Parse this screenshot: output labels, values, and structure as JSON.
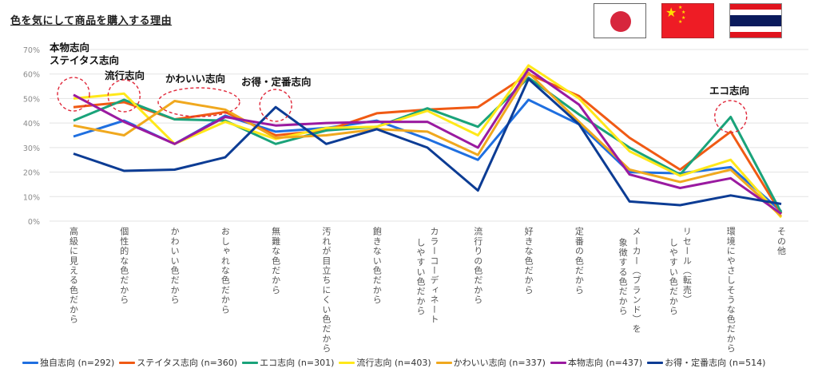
{
  "title": "色を気にして商品を購入する理由",
  "flags": [
    {
      "country": "Japan",
      "icon": "japan-flag-icon"
    },
    {
      "country": "China",
      "icon": "china-flag-icon"
    },
    {
      "country": "Thailand",
      "icon": "thailand-flag-icon"
    }
  ],
  "chart_data": {
    "type": "line",
    "title": "色を気にして商品を購入する理由",
    "xlabel": "",
    "ylabel": "",
    "ylim": [
      0,
      70
    ],
    "yticks": [
      "0%",
      "10%",
      "20%",
      "30%",
      "40%",
      "50%",
      "60%",
      "70%"
    ],
    "grid": true,
    "legend_position": "bottom",
    "categories": [
      "高級に見える色だから",
      "個性的な色だから",
      "かわいい色だから",
      "おしゃれな色だから",
      "無難な色だから",
      "汚れが目立ちにくい色だから",
      "飽きない色だから",
      "カラーコーディネート\nしやすい色だから",
      "流行りの色だから",
      "好きな色だから",
      "定番の色だから",
      "メーカー（ブランド）を\n象徴する色だから",
      "リセール（転売）\nしやすい色だから",
      "環境にやさしそうな色だから",
      "その他"
    ],
    "series": [
      {
        "name": "独自志向 (n=292)",
        "color": "#1f6fe0",
        "values": [
          34.5,
          41,
          31.5,
          43,
          36.5,
          38,
          41,
          33.5,
          25,
          49.5,
          39.5,
          20,
          19.5,
          22,
          4
        ]
      },
      {
        "name": "ステイタス志向 (n=360)",
        "color": "#f05a14",
        "values": [
          46.5,
          48.5,
          41.5,
          44.5,
          35,
          37,
          44,
          45.5,
          46.5,
          60,
          51,
          34,
          21,
          36.5,
          3
        ]
      },
      {
        "name": "エコ志向 (n=301)",
        "color": "#1aa37a",
        "values": [
          41,
          49.5,
          41.5,
          41,
          31.5,
          37,
          38.5,
          46,
          38.5,
          58.5,
          43.5,
          30,
          19,
          42.5,
          3.5
        ]
      },
      {
        "name": "流行志向 (n=403)",
        "color": "#ffe81a",
        "values": [
          50,
          52,
          31.5,
          40.5,
          33.5,
          38,
          38.5,
          45,
          35,
          63.5,
          50,
          28.5,
          18.5,
          25,
          1.5
        ]
      },
      {
        "name": "かわいい志向 (n=337)",
        "color": "#f0a81e",
        "values": [
          39,
          35,
          49,
          45.5,
          34,
          35,
          37.5,
          36.5,
          27,
          60.5,
          40.5,
          21,
          16,
          21,
          2
        ]
      },
      {
        "name": "本物志向 (n=437)",
        "color": "#9a1aa0",
        "values": [
          51.5,
          40.5,
          31.5,
          42.5,
          39,
          40,
          40.5,
          40.5,
          30,
          62,
          47.5,
          19,
          13.5,
          17.5,
          3
        ]
      },
      {
        "name": "お得・定番志向 (n=514)",
        "color": "#0c3c94",
        "values": [
          27.5,
          20.5,
          21,
          26,
          46.5,
          31.5,
          37.5,
          30,
          12.5,
          58,
          39.5,
          8,
          6.5,
          10.5,
          7
        ]
      }
    ],
    "annotations": [
      {
        "text": "本物志向\nステイタス志向",
        "category_index": 0
      },
      {
        "text": "流行志向",
        "category_index": 1
      },
      {
        "text": "かわいい志向",
        "category_index": 2
      },
      {
        "text": "お得・定番志向",
        "category_index": 4
      },
      {
        "text": "エコ志向",
        "category_index": 13
      }
    ]
  }
}
